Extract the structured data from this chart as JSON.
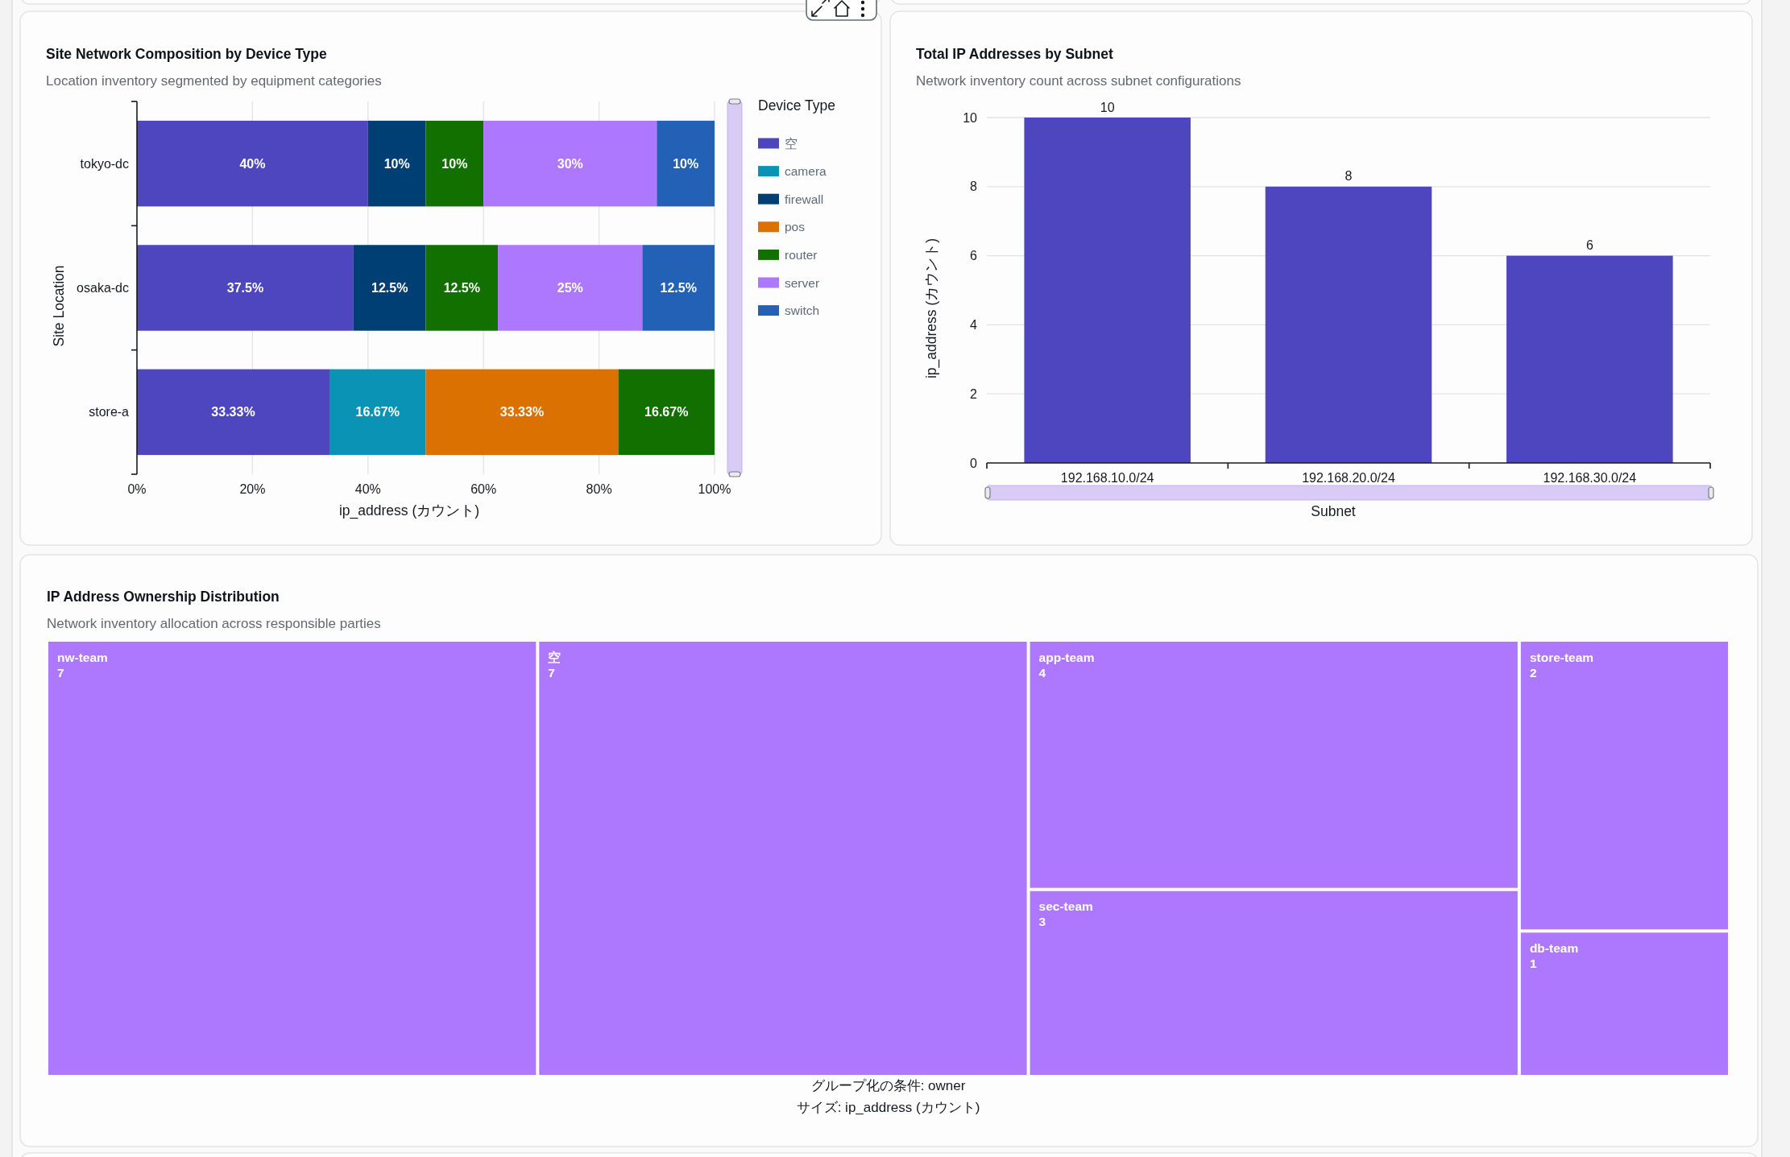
{
  "chart_data": [
    {
      "type": "bar",
      "title": "Site Network Composition by Device Type",
      "subtitle": "Location inventory segmented by equipment categories",
      "xlabel": "ip_address (カウント)",
      "ylabel": "Site Location",
      "legend_title": "Device Type",
      "orientation": "horizontal",
      "stacked": true,
      "categories": [
        "tokyo-dc",
        "osaka-dc",
        "store-a"
      ],
      "series": [
        {
          "name": "空",
          "color": "#4e46bf",
          "values": [
            40,
            37.5,
            33.33
          ],
          "value_labels": [
            "40%",
            "37.5%",
            "33.33%"
          ]
        },
        {
          "name": "camera",
          "color": "#0a93b5",
          "values": [
            null,
            null,
            16.67
          ],
          "value_labels": [
            null,
            null,
            "16.67%"
          ]
        },
        {
          "name": "firewall",
          "color": "#003f74",
          "values": [
            10,
            12.5,
            null
          ],
          "value_labels": [
            "10%",
            "12.5%",
            null
          ]
        },
        {
          "name": "pos",
          "color": "#db7100",
          "values": [
            null,
            null,
            33.33
          ],
          "value_labels": [
            null,
            null,
            "33.33%"
          ]
        },
        {
          "name": "router",
          "color": "#127000",
          "values": [
            10,
            12.5,
            16.67
          ],
          "value_labels": [
            "10%",
            "12.5%",
            "16.67%"
          ]
        },
        {
          "name": "server",
          "color": "#ad78fd",
          "values": [
            30,
            25,
            null
          ],
          "value_labels": [
            "30%",
            "25%",
            null
          ]
        },
        {
          "name": "switch",
          "color": "#2261b5",
          "values": [
            10,
            12.5,
            null
          ],
          "value_labels": [
            "10%",
            "12.5%",
            null
          ]
        }
      ],
      "xlim": [
        0,
        100
      ],
      "xticks": [
        {
          "value": 0,
          "label": "0%"
        },
        {
          "value": 20,
          "label": "20%"
        },
        {
          "value": 40,
          "label": "40%"
        },
        {
          "value": 60,
          "label": "60%"
        },
        {
          "value": 80,
          "label": "80%"
        },
        {
          "value": 100,
          "label": "100%"
        }
      ],
      "grid": "x",
      "legend": "right"
    },
    {
      "type": "bar",
      "title": "Total IP Addresses by Subnet",
      "subtitle": "Network inventory count across subnet configurations",
      "xlabel": "Subnet",
      "ylabel": "ip_address (カウント)",
      "categories": [
        "192.168.10.0/24",
        "192.168.20.0/24",
        "192.168.30.0/24"
      ],
      "values": [
        10,
        8,
        6
      ],
      "color": "#4e46bf",
      "ylim": [
        0,
        10
      ],
      "yticks": [
        0,
        2,
        4,
        6,
        8,
        10
      ],
      "grid": "y",
      "data_labels": true
    },
    {
      "type": "other",
      "title": "IP Address Ownership Distribution",
      "subtitle": "Network inventory allocation across responsible parties",
      "categories": [
        "nw-team",
        "空",
        "app-team",
        "sec-team",
        "store-team",
        "db-team"
      ],
      "values": [
        7,
        7,
        4,
        3,
        2,
        1
      ],
      "color": "#ad78fd",
      "data_labels": true,
      "annotations": [
        "グループ化の条件: owner",
        "サイズ: ip_address (カウント)"
      ]
    }
  ]
}
